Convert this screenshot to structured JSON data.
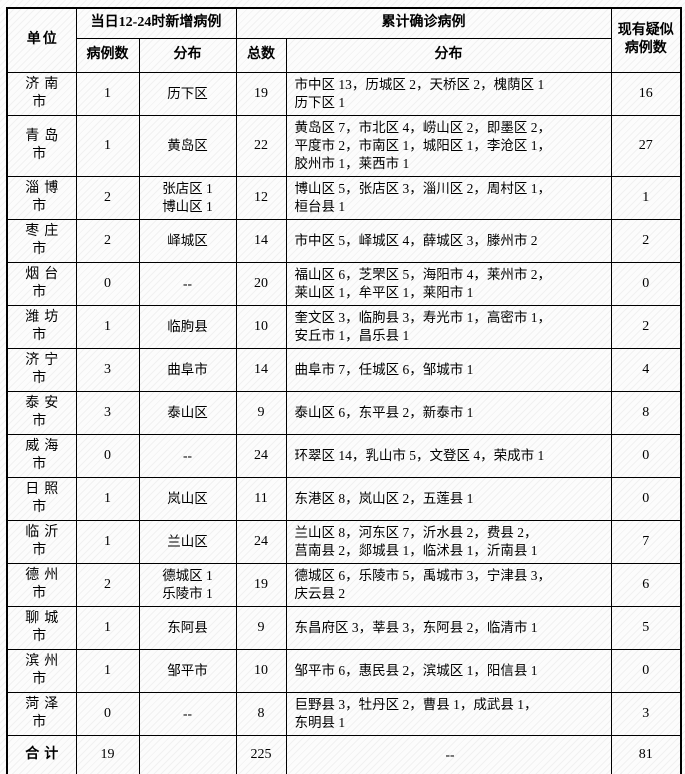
{
  "page": {
    "background_hex": "#fcfcfc",
    "hatch_hex": "#e9e9e9",
    "border_hex": "#000000",
    "text_hex": "#000000"
  },
  "table": {
    "header": {
      "unit": "单位",
      "new_group": "当日12-24时新增病例",
      "new_count": "病例数",
      "new_dist": "分布",
      "cum_group": "累计确诊病例",
      "cum_total": "总数",
      "cum_dist": "分布",
      "suspected": "现有疑似\n病例数"
    },
    "rows": [
      {
        "city": "济南市",
        "new_count": "1",
        "new_dist": "历下区",
        "total": "19",
        "dist": "市中区 13，历城区 2，天桥区 2，槐荫区 1\n历下区 1",
        "suspected": "16"
      },
      {
        "city": "青岛市",
        "new_count": "1",
        "new_dist": "黄岛区",
        "total": "22",
        "dist": "黄岛区 7，市北区 4，崂山区 2，即墨区 2，\n平度市 2，市南区 1，城阳区 1，李沧区 1，\n胶州市 1，莱西市 1",
        "suspected": "27"
      },
      {
        "city": "淄博市",
        "new_count": "2",
        "new_dist": "张店区 1\n博山区 1",
        "total": "12",
        "dist": "博山区 5，张店区 3，淄川区 2，周村区 1，\n桓台县 1",
        "suspected": "1"
      },
      {
        "city": "枣庄市",
        "new_count": "2",
        "new_dist": "峄城区",
        "total": "14",
        "dist": "市中区 5，峄城区 4，薛城区 3，滕州市 2",
        "suspected": "2"
      },
      {
        "city": "烟台市",
        "new_count": "0",
        "new_dist": "--",
        "total": "20",
        "dist": "福山区 6，芝罘区 5，海阳市 4，莱州市 2，\n莱山区 1，牟平区 1，莱阳市 1",
        "suspected": "0"
      },
      {
        "city": "潍坊市",
        "new_count": "1",
        "new_dist": "临朐县",
        "total": "10",
        "dist": "奎文区 3，临朐县 3，寿光市 1，高密市 1，\n安丘市 1，昌乐县 1",
        "suspected": "2"
      },
      {
        "city": "济宁市",
        "new_count": "3",
        "new_dist": "曲阜市",
        "total": "14",
        "dist": "曲阜市 7，任城区 6，邹城市 1",
        "suspected": "4"
      },
      {
        "city": "泰安市",
        "new_count": "3",
        "new_dist": "泰山区",
        "total": "9",
        "dist": "泰山区 6，东平县 2，新泰市 1",
        "suspected": "8"
      },
      {
        "city": "威海市",
        "new_count": "0",
        "new_dist": "--",
        "total": "24",
        "dist": "环翠区 14，乳山市 5，文登区 4，荣成市 1",
        "suspected": "0"
      },
      {
        "city": "日照市",
        "new_count": "1",
        "new_dist": "岚山区",
        "total": "11",
        "dist": "东港区 8，岚山区 2，五莲县 1",
        "suspected": "0"
      },
      {
        "city": "临沂市",
        "new_count": "1",
        "new_dist": "兰山区",
        "total": "24",
        "dist": "兰山区 8，河东区 7，沂水县 2，费县 2，\n莒南县 2，郯城县 1，临沭县 1，沂南县 1",
        "suspected": "7"
      },
      {
        "city": "德州市",
        "new_count": "2",
        "new_dist": "德城区 1\n乐陵市 1",
        "total": "19",
        "dist": "德城区 6，乐陵市 5，禹城市 3，宁津县 3，\n庆云县 2",
        "suspected": "6"
      },
      {
        "city": "聊城市",
        "new_count": "1",
        "new_dist": "东阿县",
        "total": "9",
        "dist": "东昌府区 3，莘县 3，东阿县 2，临清市 1",
        "suspected": "5"
      },
      {
        "city": "滨州市",
        "new_count": "1",
        "new_dist": "邹平市",
        "total": "10",
        "dist": "邹平市 6，惠民县 2，滨城区 1，阳信县 1",
        "suspected": "0"
      },
      {
        "city": "菏泽市",
        "new_count": "0",
        "new_dist": "--",
        "total": "8",
        "dist": "巨野县 3，牡丹区 2，曹县 1，成武县 1，\n东明县 1",
        "suspected": "3"
      },
      {
        "city": "合计",
        "new_count": "19",
        "new_dist": "",
        "total": "225",
        "dist": "--",
        "suspected": "81"
      }
    ]
  }
}
